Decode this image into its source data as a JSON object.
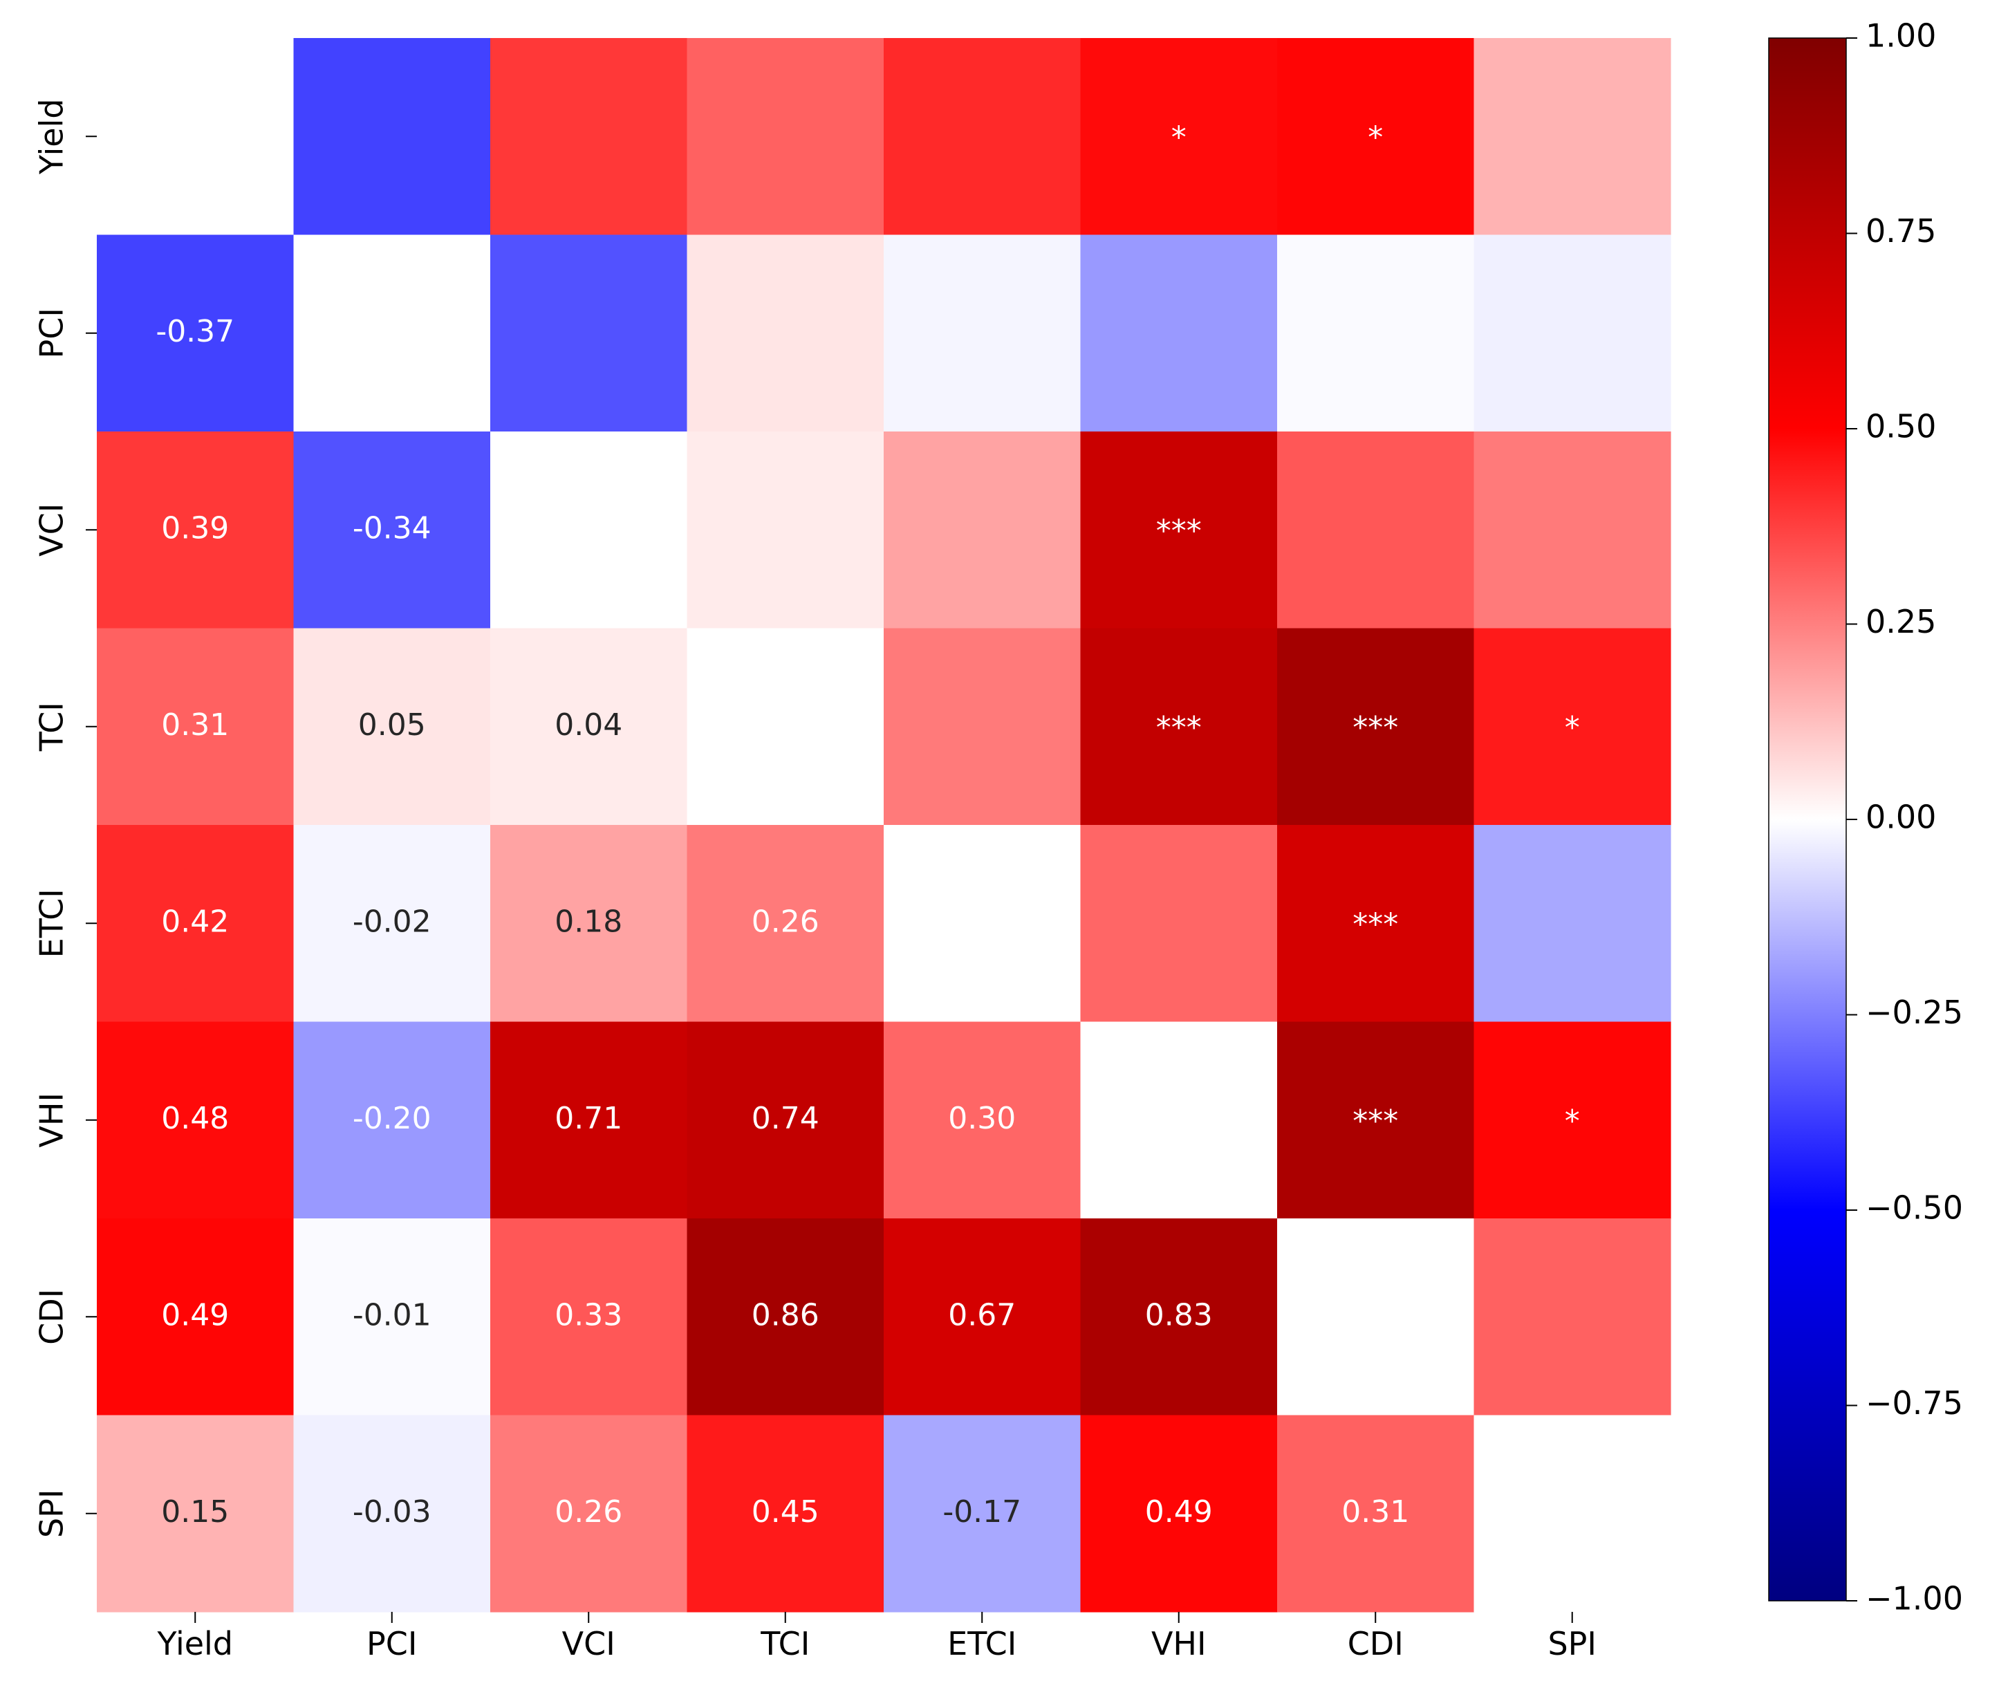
{
  "chart_data": {
    "type": "heatmap",
    "title": "",
    "xlabel": "",
    "ylabel": "",
    "variables": [
      "Yield",
      "PCI",
      "VCI",
      "TCI",
      "ETCI",
      "VHI",
      "CDI",
      "SPI"
    ],
    "matrix": [
      [
        null,
        -0.37,
        0.39,
        0.31,
        0.42,
        0.48,
        0.49,
        0.15
      ],
      [
        -0.37,
        null,
        -0.34,
        0.05,
        -0.02,
        -0.2,
        -0.01,
        -0.03
      ],
      [
        0.39,
        -0.34,
        null,
        0.04,
        0.18,
        0.71,
        0.33,
        0.26
      ],
      [
        0.31,
        0.05,
        0.04,
        null,
        0.26,
        0.74,
        0.86,
        0.45
      ],
      [
        0.42,
        -0.02,
        0.18,
        0.26,
        null,
        0.3,
        0.67,
        -0.17
      ],
      [
        0.48,
        -0.2,
        0.71,
        0.74,
        0.3,
        null,
        0.83,
        0.49
      ],
      [
        0.49,
        -0.01,
        0.33,
        0.86,
        0.67,
        0.83,
        null,
        0.31
      ],
      [
        0.15,
        -0.03,
        0.26,
        0.45,
        -0.17,
        0.49,
        0.31,
        null
      ]
    ],
    "labels": [
      [
        "",
        "",
        "",
        "",
        "",
        "*",
        "*",
        ""
      ],
      [
        "-0.37",
        "",
        "",
        "",
        "",
        "",
        "",
        ""
      ],
      [
        "0.39",
        "-0.34",
        "",
        "",
        "",
        "***",
        "",
        ""
      ],
      [
        "0.31",
        "0.05",
        "0.04",
        "",
        "",
        "***",
        "***",
        "*"
      ],
      [
        "0.42",
        "-0.02",
        "0.18",
        "0.26",
        "",
        "",
        "***",
        ""
      ],
      [
        "0.48",
        "-0.20",
        "0.71",
        "0.74",
        "0.30",
        "",
        "***",
        "*"
      ],
      [
        "0.49",
        "-0.01",
        "0.33",
        "0.86",
        "0.67",
        "0.83",
        "",
        ""
      ],
      [
        "0.15",
        "-0.03",
        "0.26",
        "0.45",
        "-0.17",
        "0.49",
        "0.31",
        ""
      ]
    ],
    "colorbar": {
      "colormap": "seismic",
      "range": [
        -1.0,
        1.0
      ],
      "ticks": [
        1.0,
        0.75,
        0.5,
        0.25,
        0.0,
        -0.25,
        -0.5,
        -0.75,
        -1.0
      ],
      "tick_labels": [
        "1.00",
        "0.75",
        "0.50",
        "0.25",
        "0.00",
        "−0.25",
        "−0.50",
        "−0.75",
        "−1.00"
      ]
    }
  }
}
